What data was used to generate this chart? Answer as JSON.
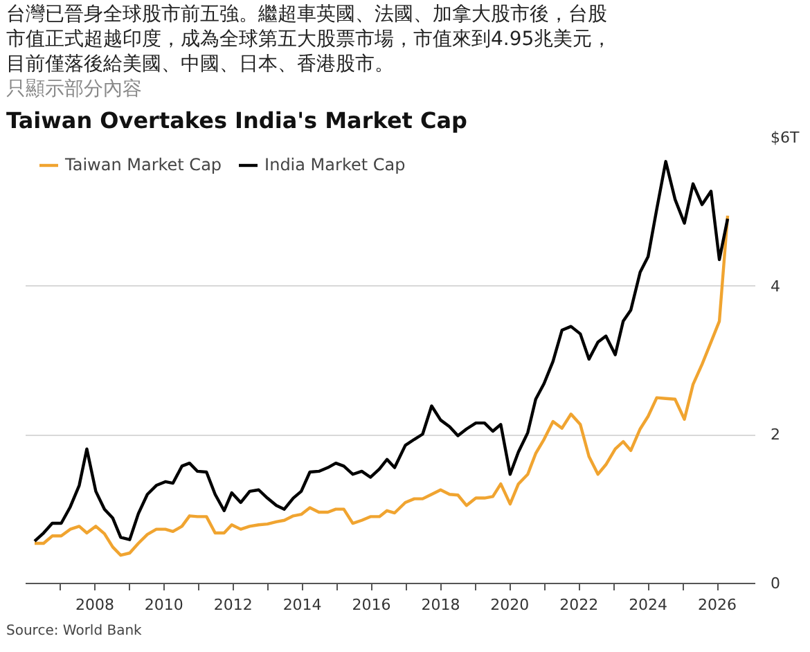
{
  "chart_data": {
    "type": "line",
    "title": "Taiwan Overtakes India's Market Cap",
    "annotations": [
      "台灣已晉身全球股市前五強。繼超車英國、法國、加拿大股市後，台股",
      "市值正式超越印度，成為全球第五大股票市場，市值來到4.95兆美元，",
      "目前僅落後給美國、中國、日本、香港股市。",
      "只顯示部分內容",
      "Source: World Bank"
    ],
    "x": [
      2006.26,
      2006.52,
      2006.77,
      2007.03,
      2007.29,
      2007.55,
      2007.77,
      2008.03,
      2008.28,
      2008.52,
      2008.75,
      2009.01,
      2009.26,
      2009.52,
      2009.78,
      2010.04,
      2010.26,
      2010.52,
      2010.74,
      2010.97,
      2011.23,
      2011.48,
      2011.74,
      2011.96,
      2012.22,
      2012.48,
      2012.74,
      2012.99,
      2013.25,
      2013.48,
      2013.74,
      2013.97,
      2014.22,
      2014.48,
      2014.74,
      2014.97,
      2015.2,
      2015.46,
      2015.72,
      2015.97,
      2016.23,
      2016.45,
      2016.67,
      2016.98,
      2017.24,
      2017.48,
      2017.74,
      2018.0,
      2018.26,
      2018.5,
      2018.75,
      2019.02,
      2019.27,
      2019.51,
      2019.74,
      2020.01,
      2020.25,
      2020.52,
      2020.75,
      2020.99,
      2021.25,
      2021.51,
      2021.77,
      2022.04,
      2022.29,
      2022.55,
      2022.78,
      2023.05,
      2023.28,
      2023.5,
      2023.77,
      2024.0,
      2024.25,
      2024.51,
      2024.78,
      2025.05,
      2025.3,
      2025.56,
      2025.82,
      2026.06,
      2026.3
    ],
    "series": [
      {
        "name": "Taiwan Market Cap",
        "color": "#f0a430",
        "values": [
          0.54,
          0.54,
          0.64,
          0.64,
          0.73,
          0.77,
          0.68,
          0.77,
          0.67,
          0.49,
          0.38,
          0.41,
          0.54,
          0.66,
          0.73,
          0.73,
          0.7,
          0.77,
          0.91,
          0.9,
          0.9,
          0.68,
          0.68,
          0.79,
          0.73,
          0.77,
          0.79,
          0.8,
          0.83,
          0.85,
          0.91,
          0.93,
          1.02,
          0.96,
          0.96,
          1.0,
          1.0,
          0.81,
          0.85,
          0.9,
          0.9,
          0.98,
          0.95,
          1.09,
          1.14,
          1.14,
          1.2,
          1.26,
          1.2,
          1.19,
          1.05,
          1.15,
          1.15,
          1.17,
          1.34,
          1.07,
          1.34,
          1.47,
          1.75,
          1.94,
          2.18,
          2.09,
          2.28,
          2.14,
          1.71,
          1.47,
          1.6,
          1.81,
          1.91,
          1.79,
          2.08,
          2.25,
          2.5,
          2.49,
          2.48,
          2.21,
          2.68,
          2.95,
          3.25,
          3.53,
          4.95
        ]
      },
      {
        "name": "India Market Cap",
        "color": "#000000",
        "values": [
          0.57,
          0.68,
          0.81,
          0.81,
          1.03,
          1.32,
          1.81,
          1.24,
          1.0,
          0.88,
          0.62,
          0.59,
          0.94,
          1.2,
          1.32,
          1.37,
          1.35,
          1.58,
          1.62,
          1.51,
          1.5,
          1.2,
          0.98,
          1.22,
          1.09,
          1.24,
          1.26,
          1.15,
          1.05,
          1.0,
          1.15,
          1.24,
          1.5,
          1.51,
          1.56,
          1.62,
          1.58,
          1.47,
          1.51,
          1.43,
          1.54,
          1.67,
          1.56,
          1.86,
          1.94,
          2.01,
          2.39,
          2.2,
          2.11,
          1.99,
          2.08,
          2.16,
          2.16,
          2.05,
          2.14,
          1.47,
          1.77,
          2.03,
          2.48,
          2.69,
          2.99,
          3.41,
          3.46,
          3.36,
          3.02,
          3.25,
          3.33,
          3.08,
          3.53,
          3.68,
          4.19,
          4.4,
          5.04,
          5.68,
          5.17,
          4.85,
          5.38,
          5.1,
          5.28,
          4.36,
          4.91
        ]
      }
    ],
    "xlim": [
      2006.0,
      2027.1
    ],
    "xticks": [
      {
        "value": 2007,
        "label": null
      },
      2008,
      {
        "value": 2009,
        "label": null
      },
      2010,
      {
        "value": 2011,
        "label": null
      },
      2012,
      {
        "value": 2013,
        "label": null
      },
      2014,
      {
        "value": 2015,
        "label": null
      },
      2016,
      {
        "value": 2017,
        "label": null
      },
      2018,
      {
        "value": 2019,
        "label": null
      },
      2020,
      {
        "value": 2021,
        "label": null
      },
      2022,
      {
        "value": 2023,
        "label": null
      },
      2024,
      {
        "value": 2025,
        "label": null
      },
      2026
    ],
    "ylim": [
      0,
      6
    ],
    "yticks": [
      0,
      2,
      4,
      {
        "value": 6,
        "label": "$6T"
      }
    ],
    "grid": "y",
    "legend": "top left",
    "marker": "none",
    "line_style": "solid"
  }
}
